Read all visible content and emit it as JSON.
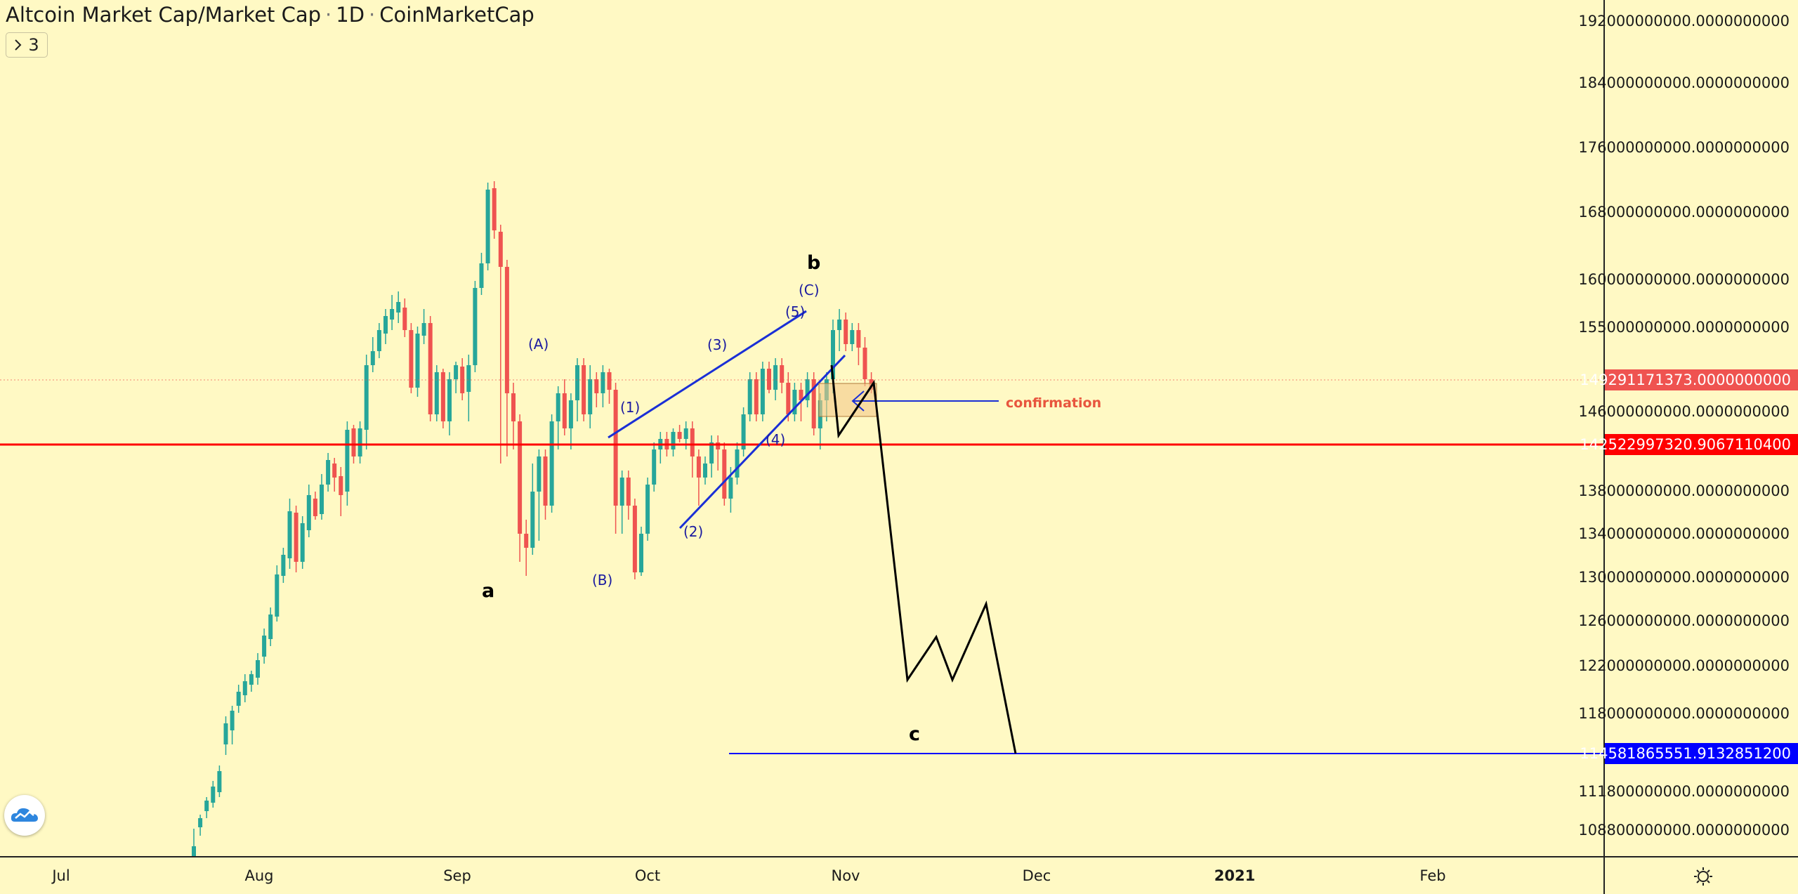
{
  "header": {
    "symbol": "Altcoin Market Cap/Market Cap",
    "interval": "1D",
    "source": "CoinMarketCap",
    "separator": "·",
    "collapse_count": "3"
  },
  "chart_data": {
    "type": "candlestick",
    "x_axis_labels": [
      "Jul",
      "Aug",
      "Sep",
      "Oct",
      "Nov",
      "Dec",
      "2021",
      "Feb"
    ],
    "price_axis_labels": [
      "192000000000.0000000000",
      "184000000000.0000000000",
      "176000000000.0000000000",
      "168000000000.0000000000",
      "160000000000.0000000000",
      "155000000000.0000000000",
      "146000000000.0000000000",
      "138000000000.0000000000",
      "134000000000.0000000000",
      "130000000000.0000000000",
      "126000000000.0000000000",
      "122000000000.0000000000",
      "118000000000.0000000000",
      "111800000000.0000000000",
      "108800000000.0000000000"
    ],
    "price_badges": {
      "last_price": "149291171373.0000000000",
      "support": "142522997320.9067110400",
      "target": "114581865551.9132851200"
    },
    "annotations": {
      "wave_labels": [
        "a",
        "b",
        "c",
        "(A)",
        "(B)",
        "(C)",
        "(1)",
        "(2)",
        "(3)",
        "(4)",
        "(5)"
      ],
      "confirmation": "confirmation"
    },
    "colors": {
      "background": "#fff9c4",
      "up_candle": "#26a69a",
      "down_candle": "#ef5350",
      "support_line": "#ff0000",
      "target_line": "#0000ff",
      "channel": "#1a2fd6"
    }
  }
}
